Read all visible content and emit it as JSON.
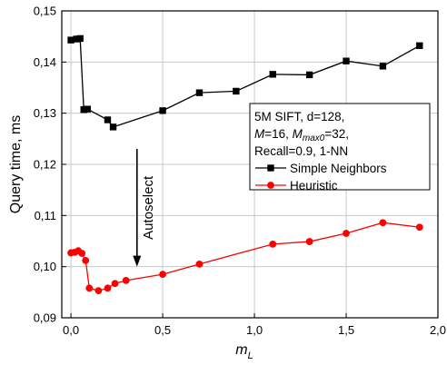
{
  "chart_data": {
    "type": "line",
    "title": "",
    "xlabel": "m",
    "xlabel_sub": "L",
    "ylabel": "Query time, ms",
    "xlim": [
      -0.05,
      2.0
    ],
    "ylim": [
      0.09,
      0.15
    ],
    "x_ticks": [
      0.0,
      0.5,
      1.0,
      1.5,
      2.0
    ],
    "x_tick_labels": [
      "0,0",
      "0,5",
      "1,0",
      "1,5",
      "2,0"
    ],
    "y_ticks": [
      0.09,
      0.1,
      0.11,
      0.12,
      0.13,
      0.14,
      0.15
    ],
    "y_tick_labels": [
      "0,09",
      "0,10",
      "0,11",
      "0,12",
      "0,13",
      "0,14",
      "0,15"
    ],
    "grid": true,
    "legend_position": "right-middle",
    "series": [
      {
        "name": "Simple Neighbors",
        "color": "#000000",
        "marker": "square",
        "x": [
          0.0,
          0.03,
          0.05,
          0.07,
          0.09,
          0.2,
          0.23,
          0.5,
          0.7,
          0.9,
          1.1,
          1.3,
          1.5,
          1.7,
          1.9
        ],
        "y": [
          0.1443,
          0.1445,
          0.1446,
          0.1307,
          0.1308,
          0.1287,
          0.1273,
          0.1305,
          0.134,
          0.1343,
          0.1376,
          0.1375,
          0.1402,
          0.1392,
          0.1432
        ]
      },
      {
        "name": "Heuristic",
        "color": "#ff0000",
        "marker": "circle",
        "x": [
          0.0,
          0.02,
          0.04,
          0.06,
          0.08,
          0.1,
          0.15,
          0.2,
          0.24,
          0.3,
          0.5,
          0.7,
          1.1,
          1.3,
          1.5,
          1.7,
          1.9
        ],
        "y": [
          0.1027,
          0.1028,
          0.1031,
          0.1026,
          0.1012,
          0.0958,
          0.0953,
          0.0958,
          0.0967,
          0.0973,
          0.0985,
          0.1005,
          0.1044,
          0.1049,
          0.1065,
          0.1086,
          0.1077
        ]
      }
    ],
    "annotations": {
      "info_lines": [
        [
          {
            "t": "5M SIFT, d=128,"
          }
        ],
        [
          {
            "t": "M",
            "i": true
          },
          {
            "t": "=16, "
          },
          {
            "t": "M",
            "i": true
          },
          {
            "t": "max0",
            "i": true,
            "sub": true
          },
          {
            "t": "=32,"
          }
        ],
        [
          {
            "t": "Recall=0.9, 1-NN"
          }
        ]
      ],
      "arrow_text": "Autoselect",
      "arrow_x": 0.36,
      "arrow_from_y": 0.123,
      "arrow_to_y": 0.1
    }
  }
}
